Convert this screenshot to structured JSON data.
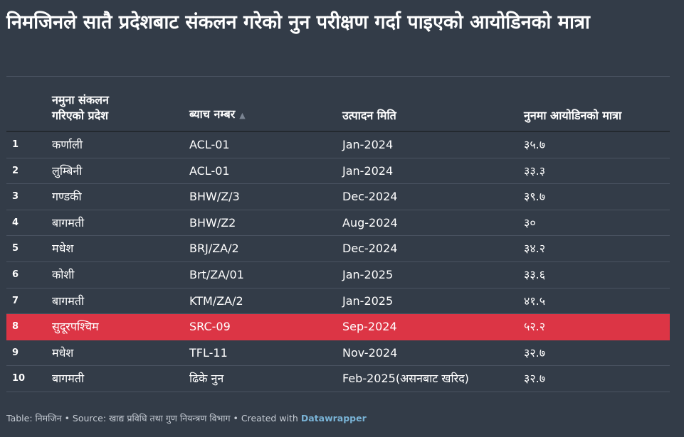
{
  "title": "निमजिनले सातै प्रदेशबाट संकलन गरेको नुन परीक्षण गर्दा पाइएको आयोडिनको मात्रा",
  "colors": {
    "background": "#333c48",
    "highlight_row": "#dc3545",
    "text": "#ffffff",
    "footer_link": "#79b3d6"
  },
  "chart_data": {
    "type": "table",
    "columns": [
      "",
      "नमुना संकलन गरिएको प्रदेश",
      "ब्याच नम्बर",
      "उत्पादन मिति",
      "नुनमा आयोडिनको मात्रा"
    ],
    "sorted_by": "ब्याच नम्बर",
    "sort_direction": "ascending",
    "highlighted_row": 8,
    "rows": [
      {
        "n": "1",
        "province": "कर्णाली",
        "batch": "ACL-01",
        "date": "Jan-2024",
        "iodine": "३५.७"
      },
      {
        "n": "2",
        "province": "लुम्बिनी",
        "batch": "ACL-01",
        "date": "Jan-2024",
        "iodine": "३३.३"
      },
      {
        "n": "3",
        "province": "गण्डकी",
        "batch": "BHW/Z/3",
        "date": "Dec-2024",
        "iodine": "३९.७"
      },
      {
        "n": "4",
        "province": "बागमती",
        "batch": "BHW/Z2",
        "date": "Aug-2024",
        "iodine": "३०"
      },
      {
        "n": "5",
        "province": "मधेश",
        "batch": "BRJ/ZA/2",
        "date": "Dec-2024",
        "iodine": "३४.२"
      },
      {
        "n": "6",
        "province": "कोशी",
        "batch": "Brt/ZA/01",
        "date": "Jan-2025",
        "iodine": "३३.६"
      },
      {
        "n": "7",
        "province": "बागमती",
        "batch": "KTM/ZA/2",
        "date": "Jan-2025",
        "iodine": "४१.५"
      },
      {
        "n": "8",
        "province": "सुदूरपश्चिम",
        "batch": "SRC-09",
        "date": "Sep-2024",
        "iodine": "५२.२"
      },
      {
        "n": "9",
        "province": "मधेश",
        "batch": "TFL-11",
        "date": "Nov-2024",
        "iodine": "३२.७"
      },
      {
        "n": "10",
        "province": "बागमती",
        "batch": "ढिके नुन",
        "date": "Feb-2025(असनबाट खरिद)",
        "iodine": "३२.७"
      }
    ]
  },
  "header": {
    "province_line1": "नमुना संकलन",
    "province_line2": "गरिएको प्रदेश",
    "batch": "ब्याच नम्बर",
    "sort_icon": "sort-ascending-icon",
    "date": "उत्पादन मिति",
    "iodine": "नुनमा आयोडिनको मात्रा"
  },
  "footer": {
    "text": "Table: निमजिन • Source: खाद्य प्रविधि तथा गुण नियन्त्रण विभाग • Created with ",
    "link": "Datawrapper"
  }
}
